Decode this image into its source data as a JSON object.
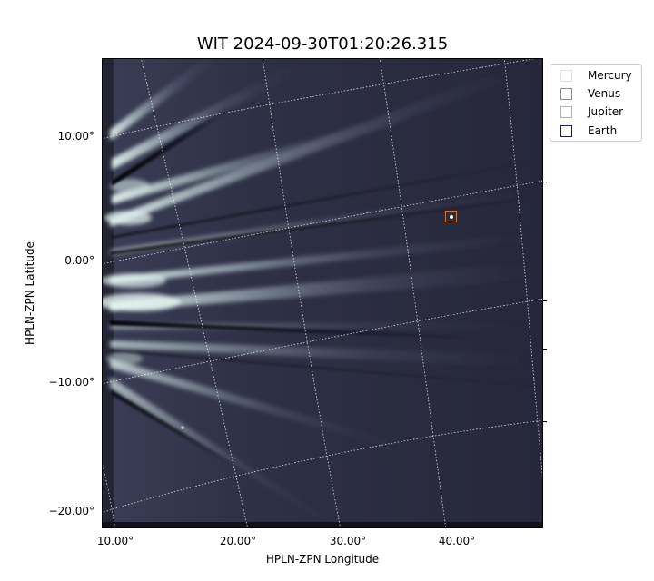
{
  "title": "WIT 2024-09-30T01:20:26.315",
  "axes": {
    "xlabel": "HPLN-ZPN Longitude",
    "ylabel": "HPLN-ZPN Latitude",
    "xticks": [
      "10.00°",
      "20.00°",
      "30.00°",
      "40.00°"
    ],
    "yticks": [
      "10.00°",
      "0.00°",
      "−10.00°",
      "−20.00°"
    ]
  },
  "legend": {
    "items": [
      {
        "label": "Mercury",
        "color": "#e0e0e0"
      },
      {
        "label": "Venus",
        "color": "#d4763a"
      },
      {
        "label": "Jupiter",
        "color": "#e0b030"
      },
      {
        "label": "Earth",
        "color": "#1a1a6e"
      }
    ]
  },
  "marker": {
    "label": "Venus",
    "color": "#d4763a"
  },
  "colors": {
    "background": "#2a2b3d",
    "streamer": "#d8ece8",
    "grid": "#ffffff"
  }
}
